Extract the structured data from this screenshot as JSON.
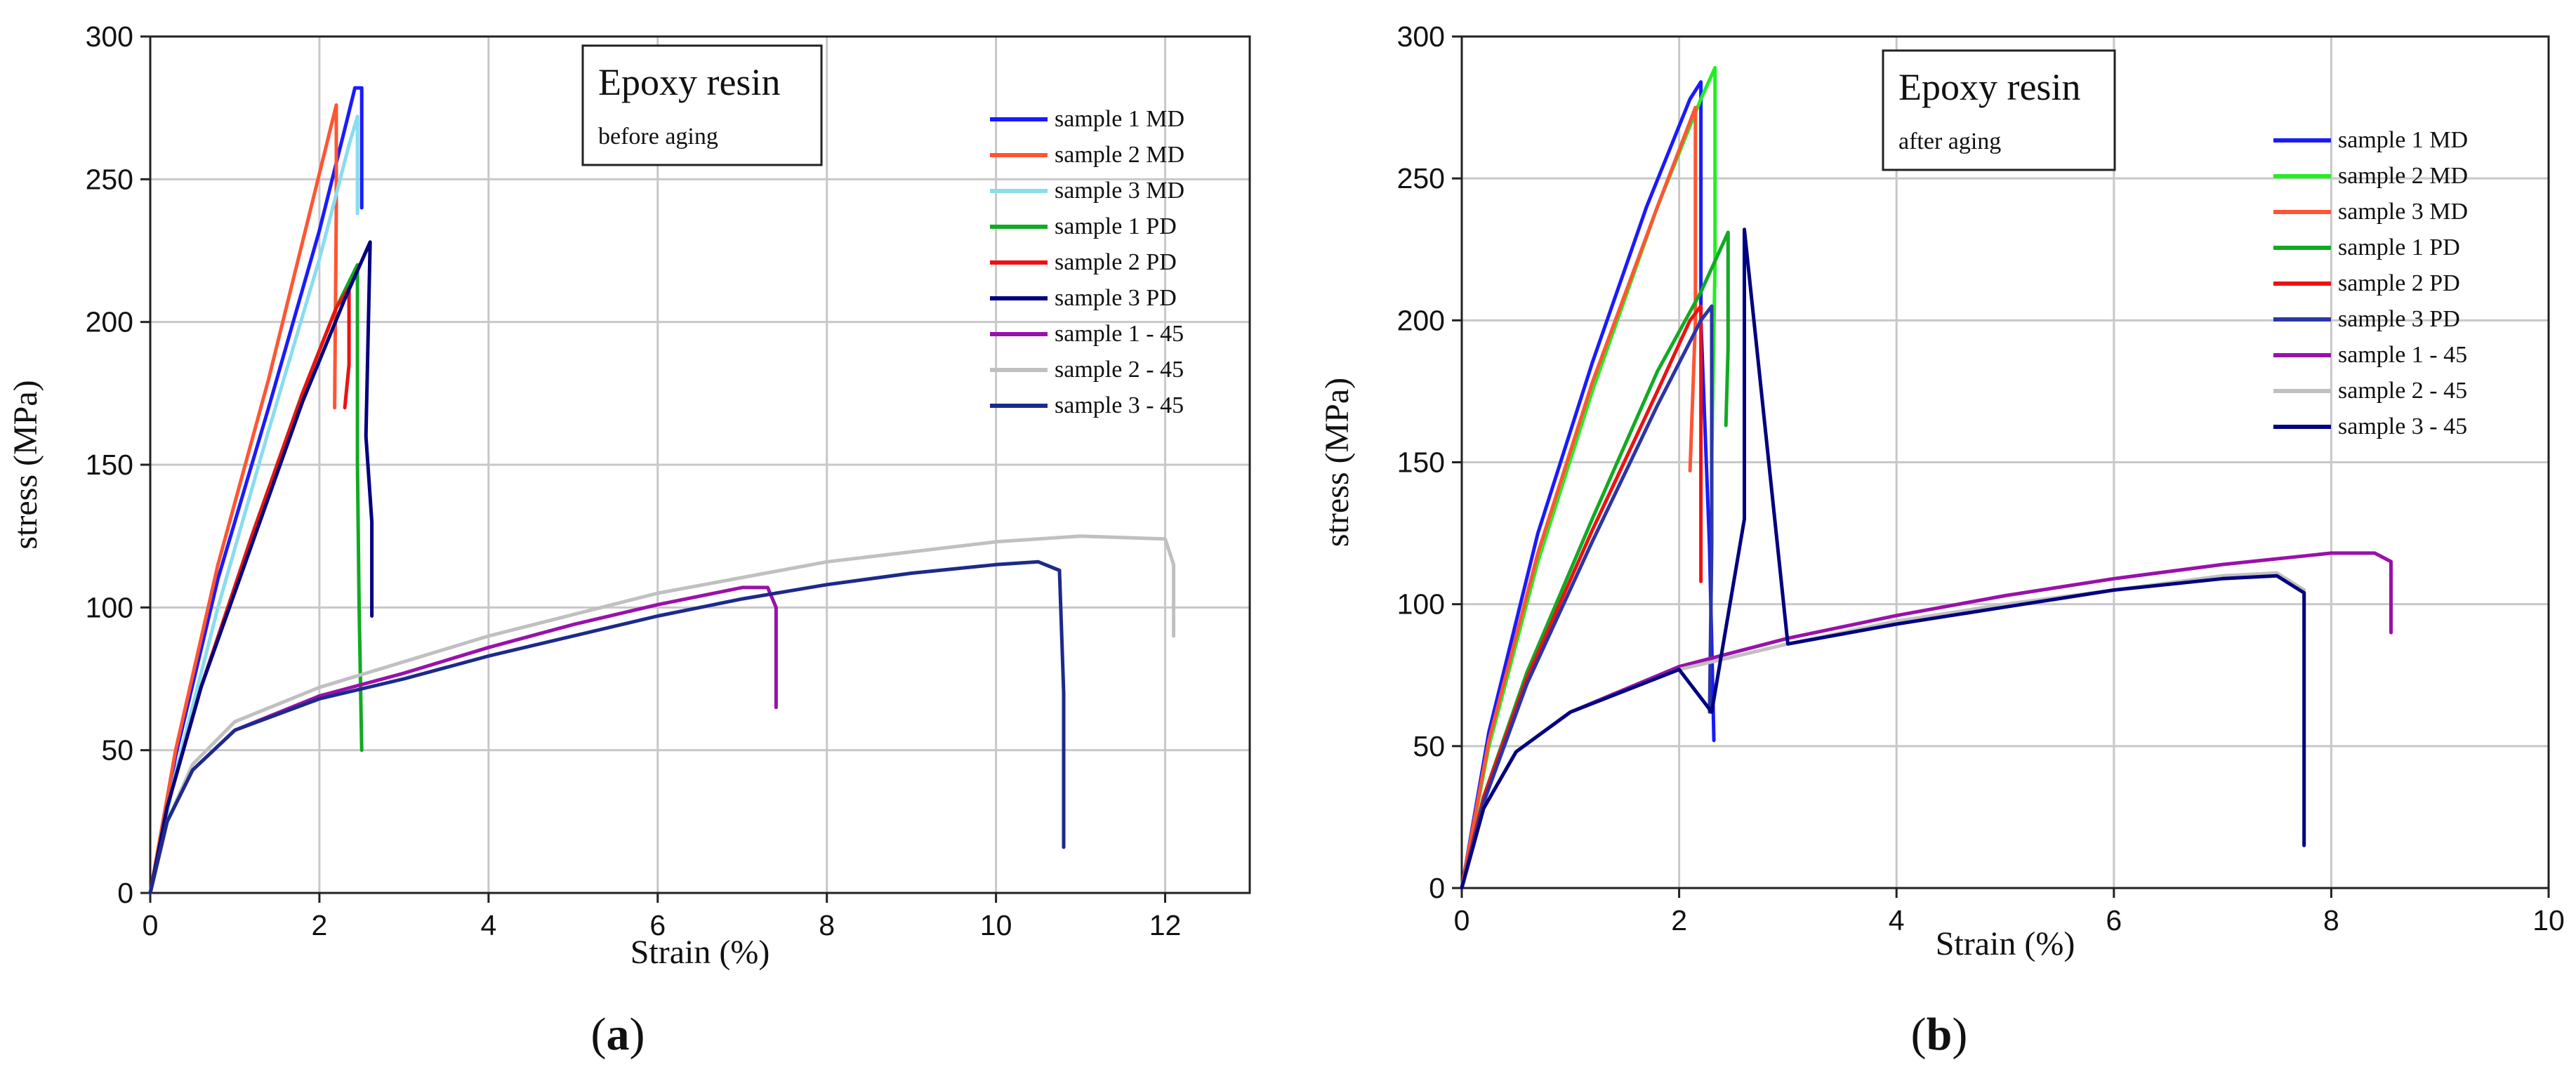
{
  "chart_data": [
    {
      "type": "line",
      "panel_label": "a",
      "title": "Epoxy resin",
      "subtitle": "before aging",
      "xlabel": "Strain (%)",
      "ylabel": "stress (MPa)",
      "xlim": [
        0,
        13
      ],
      "ylim": [
        0,
        300
      ],
      "xticks": [
        "0",
        "2",
        "4",
        "6",
        "8",
        "10",
        "12"
      ],
      "yticks": [
        "0",
        "50",
        "100",
        "150",
        "200",
        "250",
        "300"
      ],
      "grid": true,
      "legend_position": "top-right",
      "series": [
        {
          "name": "sample 1 MD",
          "color": "#1a1aff",
          "points": [
            [
              0,
              0
            ],
            [
              0.3,
              48
            ],
            [
              0.8,
              110
            ],
            [
              1.4,
              170
            ],
            [
              2.0,
              232
            ],
            [
              2.32,
              270
            ],
            [
              2.42,
              282
            ],
            [
              2.5,
              282
            ],
            [
              2.5,
              240
            ]
          ]
        },
        {
          "name": "sample 2 MD",
          "color": "#ff5533",
          "points": [
            [
              0,
              0
            ],
            [
              0.3,
              50
            ],
            [
              0.8,
              115
            ],
            [
              1.4,
              180
            ],
            [
              1.9,
              240
            ],
            [
              2.2,
              276
            ],
            [
              2.2,
              240
            ],
            [
              2.18,
              170
            ]
          ]
        },
        {
          "name": "sample 3 MD",
          "color": "#88ddee",
          "points": [
            [
              0,
              0
            ],
            [
              0.3,
              42
            ],
            [
              0.8,
              100
            ],
            [
              1.4,
              162
            ],
            [
              2.0,
              222
            ],
            [
              2.35,
              262
            ],
            [
              2.45,
              272
            ],
            [
              2.45,
              238
            ]
          ]
        },
        {
          "name": "sample 1 PD",
          "color": "#11aa22",
          "points": [
            [
              0,
              0
            ],
            [
              0.2,
              30
            ],
            [
              0.6,
              72
            ],
            [
              1.2,
              125
            ],
            [
              1.8,
              175
            ],
            [
              2.2,
              205
            ],
            [
              2.45,
              220
            ],
            [
              2.45,
              150
            ],
            [
              2.47,
              100
            ],
            [
              2.5,
              50
            ]
          ]
        },
        {
          "name": "sample 2 PD",
          "color": "#ee1111",
          "points": [
            [
              0,
              0
            ],
            [
              0.2,
              30
            ],
            [
              0.6,
              72
            ],
            [
              1.2,
              125
            ],
            [
              1.8,
              175
            ],
            [
              2.2,
              205
            ],
            [
              2.35,
              212
            ],
            [
              2.35,
              185
            ],
            [
              2.3,
              170
            ]
          ]
        },
        {
          "name": "sample 3 PD",
          "color": "#000080",
          "points": [
            [
              0,
              0
            ],
            [
              0.2,
              30
            ],
            [
              0.6,
              72
            ],
            [
              1.2,
              122
            ],
            [
              1.8,
              172
            ],
            [
              2.3,
              208
            ],
            [
              2.6,
              228
            ],
            [
              2.55,
              160
            ],
            [
              2.62,
              130
            ],
            [
              2.62,
              97
            ]
          ]
        },
        {
          "name": "sample 1 - 45",
          "color": "#9911aa",
          "points": [
            [
              0,
              0
            ],
            [
              0.2,
              25
            ],
            [
              0.5,
              43
            ],
            [
              1.0,
              57
            ],
            [
              2.0,
              69
            ],
            [
              3.0,
              77
            ],
            [
              4.0,
              86
            ],
            [
              5.0,
              94
            ],
            [
              6.0,
              101
            ],
            [
              7.0,
              107
            ],
            [
              7.3,
              107
            ],
            [
              7.4,
              100
            ],
            [
              7.4,
              65
            ]
          ]
        },
        {
          "name": "sample 2 - 45",
          "color": "#c0c0c0",
          "points": [
            [
              0,
              0
            ],
            [
              0.2,
              25
            ],
            [
              0.5,
              45
            ],
            [
              1.0,
              60
            ],
            [
              2.0,
              72
            ],
            [
              4.0,
              90
            ],
            [
              6.0,
              105
            ],
            [
              8.0,
              116
            ],
            [
              10.0,
              123
            ],
            [
              11.0,
              125
            ],
            [
              12.0,
              124
            ],
            [
              12.1,
              115
            ],
            [
              12.1,
              90
            ]
          ]
        },
        {
          "name": "sample 3 - 45",
          "color": "#1c2a8c",
          "points": [
            [
              0,
              0
            ],
            [
              0.2,
              25
            ],
            [
              0.5,
              43
            ],
            [
              1.0,
              57
            ],
            [
              2.0,
              68
            ],
            [
              3.0,
              75
            ],
            [
              4.0,
              83
            ],
            [
              5.0,
              90
            ],
            [
              6.0,
              97
            ],
            [
              7.0,
              103
            ],
            [
              8.0,
              108
            ],
            [
              9.0,
              112
            ],
            [
              10.0,
              115
            ],
            [
              10.5,
              116
            ],
            [
              10.75,
              113
            ],
            [
              10.8,
              70
            ],
            [
              10.8,
              16
            ]
          ]
        }
      ]
    },
    {
      "type": "line",
      "panel_label": "b",
      "title": "Epoxy resin",
      "subtitle": "after aging",
      "xlabel": "Strain (%)",
      "ylabel": "stress (MPa)",
      "xlim": [
        0,
        10
      ],
      "ylim": [
        0,
        300
      ],
      "xticks": [
        "0",
        "2",
        "4",
        "6",
        "8",
        "10"
      ],
      "yticks": [
        "0",
        "50",
        "100",
        "150",
        "200",
        "250",
        "300"
      ],
      "grid": true,
      "legend_position": "top-right",
      "series": [
        {
          "name": "sample 1 MD",
          "color": "#1a1aff",
          "points": [
            [
              0,
              0
            ],
            [
              0.25,
              55
            ],
            [
              0.7,
              125
            ],
            [
              1.2,
              185
            ],
            [
              1.7,
              240
            ],
            [
              2.1,
              278
            ],
            [
              2.2,
              284
            ],
            [
              2.2,
              200
            ],
            [
              2.28,
              120
            ],
            [
              2.32,
              52
            ]
          ]
        },
        {
          "name": "sample 2 MD",
          "color": "#22ee22",
          "points": [
            [
              0,
              0
            ],
            [
              0.25,
              50
            ],
            [
              0.7,
              115
            ],
            [
              1.2,
              175
            ],
            [
              1.8,
              240
            ],
            [
              2.2,
              278
            ],
            [
              2.33,
              289
            ],
            [
              2.33,
              220
            ],
            [
              2.3,
              152
            ]
          ]
        },
        {
          "name": "sample 3 MD",
          "color": "#ff5533",
          "points": [
            [
              0,
              0
            ],
            [
              0.25,
              52
            ],
            [
              0.7,
              118
            ],
            [
              1.2,
              178
            ],
            [
              1.8,
              240
            ],
            [
              2.15,
              275
            ],
            [
              2.15,
              200
            ],
            [
              2.1,
              147
            ]
          ]
        },
        {
          "name": "sample 1 PD",
          "color": "#11aa22",
          "points": [
            [
              0,
              0
            ],
            [
              0.2,
              32
            ],
            [
              0.6,
              76
            ],
            [
              1.2,
              130
            ],
            [
              1.8,
              182
            ],
            [
              2.2,
              210
            ],
            [
              2.45,
              231
            ],
            [
              2.45,
              190
            ],
            [
              2.43,
              163
            ]
          ]
        },
        {
          "name": "sample 2 PD",
          "color": "#ee1111",
          "points": [
            [
              0,
              0
            ],
            [
              0.2,
              32
            ],
            [
              0.6,
              74
            ],
            [
              1.2,
              126
            ],
            [
              1.8,
              175
            ],
            [
              2.1,
              200
            ],
            [
              2.2,
              205
            ],
            [
              2.2,
              150
            ],
            [
              2.2,
              108
            ]
          ]
        },
        {
          "name": "sample 3 PD",
          "color": "#2a35a8",
          "points": [
            [
              0,
              0
            ],
            [
              0.2,
              30
            ],
            [
              0.6,
              72
            ],
            [
              1.2,
              122
            ],
            [
              1.8,
              170
            ],
            [
              2.2,
              200
            ],
            [
              2.3,
              205
            ],
            [
              2.3,
              120
            ],
            [
              2.28,
              62
            ]
          ]
        },
        {
          "name": "sample 1 - 45",
          "color": "#9911aa",
          "points": [
            [
              0,
              0
            ],
            [
              0.2,
              28
            ],
            [
              0.5,
              48
            ],
            [
              1.0,
              62
            ],
            [
              2.0,
              78
            ],
            [
              3.0,
              88
            ],
            [
              4.0,
              96
            ],
            [
              5.0,
              103
            ],
            [
              6.0,
              109
            ],
            [
              7.0,
              114
            ],
            [
              8.0,
              118
            ],
            [
              8.4,
              118
            ],
            [
              8.55,
              115
            ],
            [
              8.55,
              90
            ]
          ]
        },
        {
          "name": "sample 2 - 45",
          "color": "#c0c0c0",
          "points": [
            [
              0,
              0
            ],
            [
              0.2,
              28
            ],
            [
              0.5,
              48
            ],
            [
              1.0,
              62
            ],
            [
              2.0,
              77
            ],
            [
              3.0,
              86
            ],
            [
              4.0,
              94
            ],
            [
              5.0,
              100
            ],
            [
              6.0,
              105
            ],
            [
              7.0,
              110
            ],
            [
              7.5,
              111
            ],
            [
              7.75,
              105
            ],
            [
              7.75,
              90
            ]
          ]
        },
        {
          "name": "sample 3 - 45",
          "color": "#000080",
          "points": [
            [
              0,
              0
            ],
            [
              0.2,
              28
            ],
            [
              0.5,
              48
            ],
            [
              1.0,
              62
            ],
            [
              2.0,
              77
            ],
            [
              2.3,
              62
            ],
            [
              2.6,
              130
            ],
            [
              2.6,
              232
            ],
            [
              3.0,
              86
            ],
            [
              4.0,
              93
            ],
            [
              5.0,
              99
            ],
            [
              6.0,
              105
            ],
            [
              7.0,
              109
            ],
            [
              7.5,
              110
            ],
            [
              7.75,
              104
            ],
            [
              7.75,
              80
            ],
            [
              7.75,
              15
            ]
          ]
        }
      ]
    }
  ]
}
